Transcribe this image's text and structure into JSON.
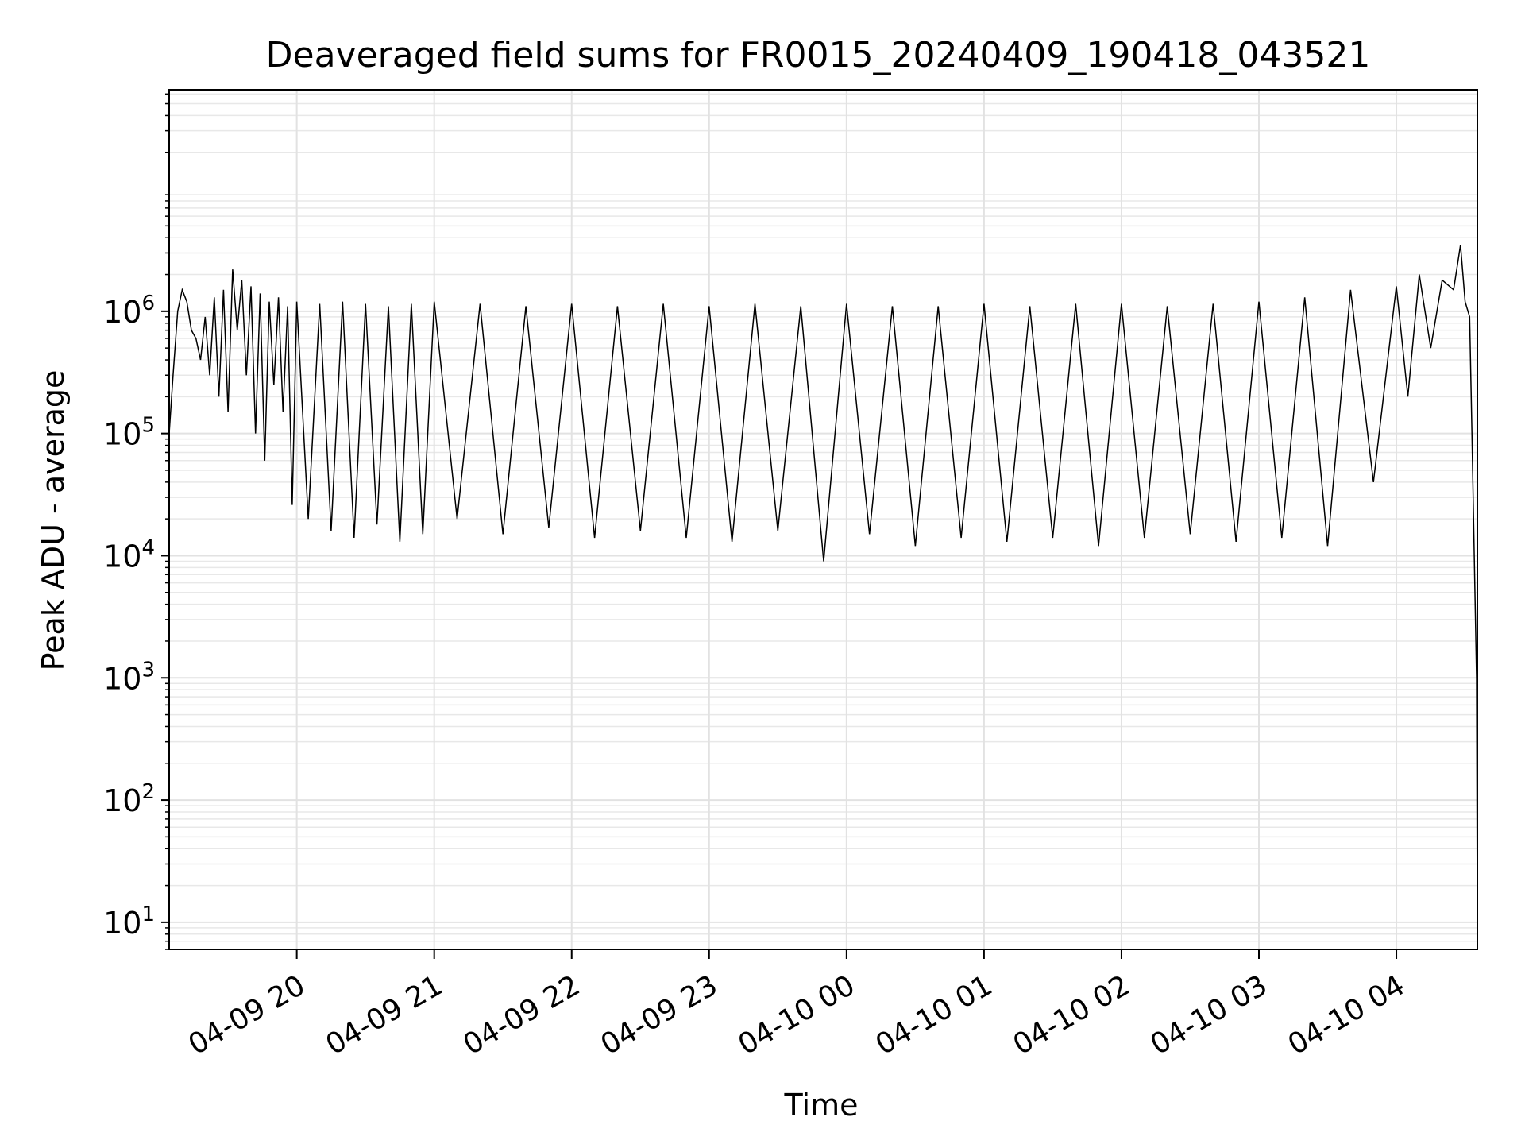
{
  "chart_data": {
    "type": "line",
    "title": "Deaveraged field sums for FR0015_20240409_190418_043521",
    "xlabel": "Time",
    "ylabel": "Peak ADU - average",
    "yscale": "log",
    "ylim": [
      6,
      65000000
    ],
    "xlim": [
      "2024-04-09 19:04:18",
      "2024-04-10 04:35:21"
    ],
    "x_ticks": [
      {
        "value": "2024-04-09 20:00",
        "label": "04-09 20"
      },
      {
        "value": "2024-04-09 21:00",
        "label": "04-09 21"
      },
      {
        "value": "2024-04-09 22:00",
        "label": "04-09 22"
      },
      {
        "value": "2024-04-09 23:00",
        "label": "04-09 23"
      },
      {
        "value": "2024-04-10 00:00",
        "label": "04-10 00"
      },
      {
        "value": "2024-04-10 01:00",
        "label": "04-10 01"
      },
      {
        "value": "2024-04-10 02:00",
        "label": "04-10 02"
      },
      {
        "value": "2024-04-10 03:00",
        "label": "04-10 03"
      },
      {
        "value": "2024-04-10 04:00",
        "label": "04-10 04"
      }
    ],
    "y_ticks": [
      {
        "value": 10,
        "base": "10",
        "exp": "1"
      },
      {
        "value": 100,
        "base": "10",
        "exp": "2"
      },
      {
        "value": 1000,
        "base": "10",
        "exp": "3"
      },
      {
        "value": 10000,
        "base": "10",
        "exp": "4"
      },
      {
        "value": 100000,
        "base": "10",
        "exp": "5"
      },
      {
        "value": 1000000,
        "base": "10",
        "exp": "6"
      }
    ],
    "grid": true,
    "series": [
      {
        "color": "#000000",
        "x": [
          "2024-04-09 19:04:18",
          "2024-04-09 19:06",
          "2024-04-09 19:08",
          "2024-04-09 19:10",
          "2024-04-09 19:12",
          "2024-04-09 19:14",
          "2024-04-09 19:16",
          "2024-04-09 19:18",
          "2024-04-09 19:20",
          "2024-04-09 19:22",
          "2024-04-09 19:24",
          "2024-04-09 19:26",
          "2024-04-09 19:28",
          "2024-04-09 19:30",
          "2024-04-09 19:32",
          "2024-04-09 19:34",
          "2024-04-09 19:36",
          "2024-04-09 19:38",
          "2024-04-09 19:40",
          "2024-04-09 19:42",
          "2024-04-09 19:44",
          "2024-04-09 19:46",
          "2024-04-09 19:48",
          "2024-04-09 19:50",
          "2024-04-09 19:52",
          "2024-04-09 19:54",
          "2024-04-09 19:56",
          "2024-04-09 19:58",
          "2024-04-09 20:00",
          "2024-04-09 20:05",
          "2024-04-09 20:10",
          "2024-04-09 20:15",
          "2024-04-09 20:20",
          "2024-04-09 20:25",
          "2024-04-09 20:30",
          "2024-04-09 20:35",
          "2024-04-09 20:40",
          "2024-04-09 20:45",
          "2024-04-09 20:50",
          "2024-04-09 20:55",
          "2024-04-09 21:00",
          "2024-04-09 21:10",
          "2024-04-09 21:20",
          "2024-04-09 21:30",
          "2024-04-09 21:40",
          "2024-04-09 21:50",
          "2024-04-09 22:00",
          "2024-04-09 22:10",
          "2024-04-09 22:20",
          "2024-04-09 22:30",
          "2024-04-09 22:40",
          "2024-04-09 22:50",
          "2024-04-09 23:00",
          "2024-04-09 23:10",
          "2024-04-09 23:20",
          "2024-04-09 23:30",
          "2024-04-09 23:40",
          "2024-04-09 23:50",
          "2024-04-10 00:00",
          "2024-04-10 00:10",
          "2024-04-10 00:20",
          "2024-04-10 00:30",
          "2024-04-10 00:40",
          "2024-04-10 00:50",
          "2024-04-10 01:00",
          "2024-04-10 01:10",
          "2024-04-10 01:20",
          "2024-04-10 01:30",
          "2024-04-10 01:40",
          "2024-04-10 01:50",
          "2024-04-10 02:00",
          "2024-04-10 02:10",
          "2024-04-10 02:20",
          "2024-04-10 02:30",
          "2024-04-10 02:40",
          "2024-04-10 02:50",
          "2024-04-10 03:00",
          "2024-04-10 03:10",
          "2024-04-10 03:20",
          "2024-04-10 03:30",
          "2024-04-10 03:40",
          "2024-04-10 03:50",
          "2024-04-10 04:00",
          "2024-04-10 04:05",
          "2024-04-10 04:10",
          "2024-04-10 04:15",
          "2024-04-10 04:20",
          "2024-04-10 04:25",
          "2024-04-10 04:28",
          "2024-04-10 04:30",
          "2024-04-10 04:32",
          "2024-04-10 04:33",
          "2024-04-10 04:34",
          "2024-04-10 04:35",
          "2024-04-10 04:35:21"
        ],
        "y": [
          100000,
          300000,
          1000000,
          1500000,
          1200000,
          700000,
          600000,
          400000,
          900000,
          300000,
          1300000,
          200000,
          1500000,
          150000,
          2200000,
          700000,
          1800000,
          300000,
          1600000,
          100000,
          1400000,
          60000,
          1200000,
          250000,
          1300000,
          150000,
          1100000,
          26000,
          1200000,
          20000,
          1150000,
          16000,
          1200000,
          14000,
          1150000,
          18000,
          1100000,
          13000,
          1150000,
          15000,
          1200000,
          20000,
          1150000,
          15000,
          1100000,
          17000,
          1150000,
          14000,
          1100000,
          16000,
          1150000,
          14000,
          1100000,
          13000,
          1150000,
          16000,
          1100000,
          9000,
          1150000,
          15000,
          1100000,
          12000,
          1100000,
          14000,
          1150000,
          13000,
          1100000,
          14000,
          1150000,
          12000,
          1150000,
          14000,
          1100000,
          15000,
          1150000,
          13000,
          1200000,
          14000,
          1300000,
          12000,
          1500000,
          40000,
          1600000,
          200000,
          2000000,
          500000,
          1800000,
          1500000,
          3500000,
          1200000,
          900000,
          100000,
          10000,
          1000,
          10
        ]
      }
    ]
  }
}
